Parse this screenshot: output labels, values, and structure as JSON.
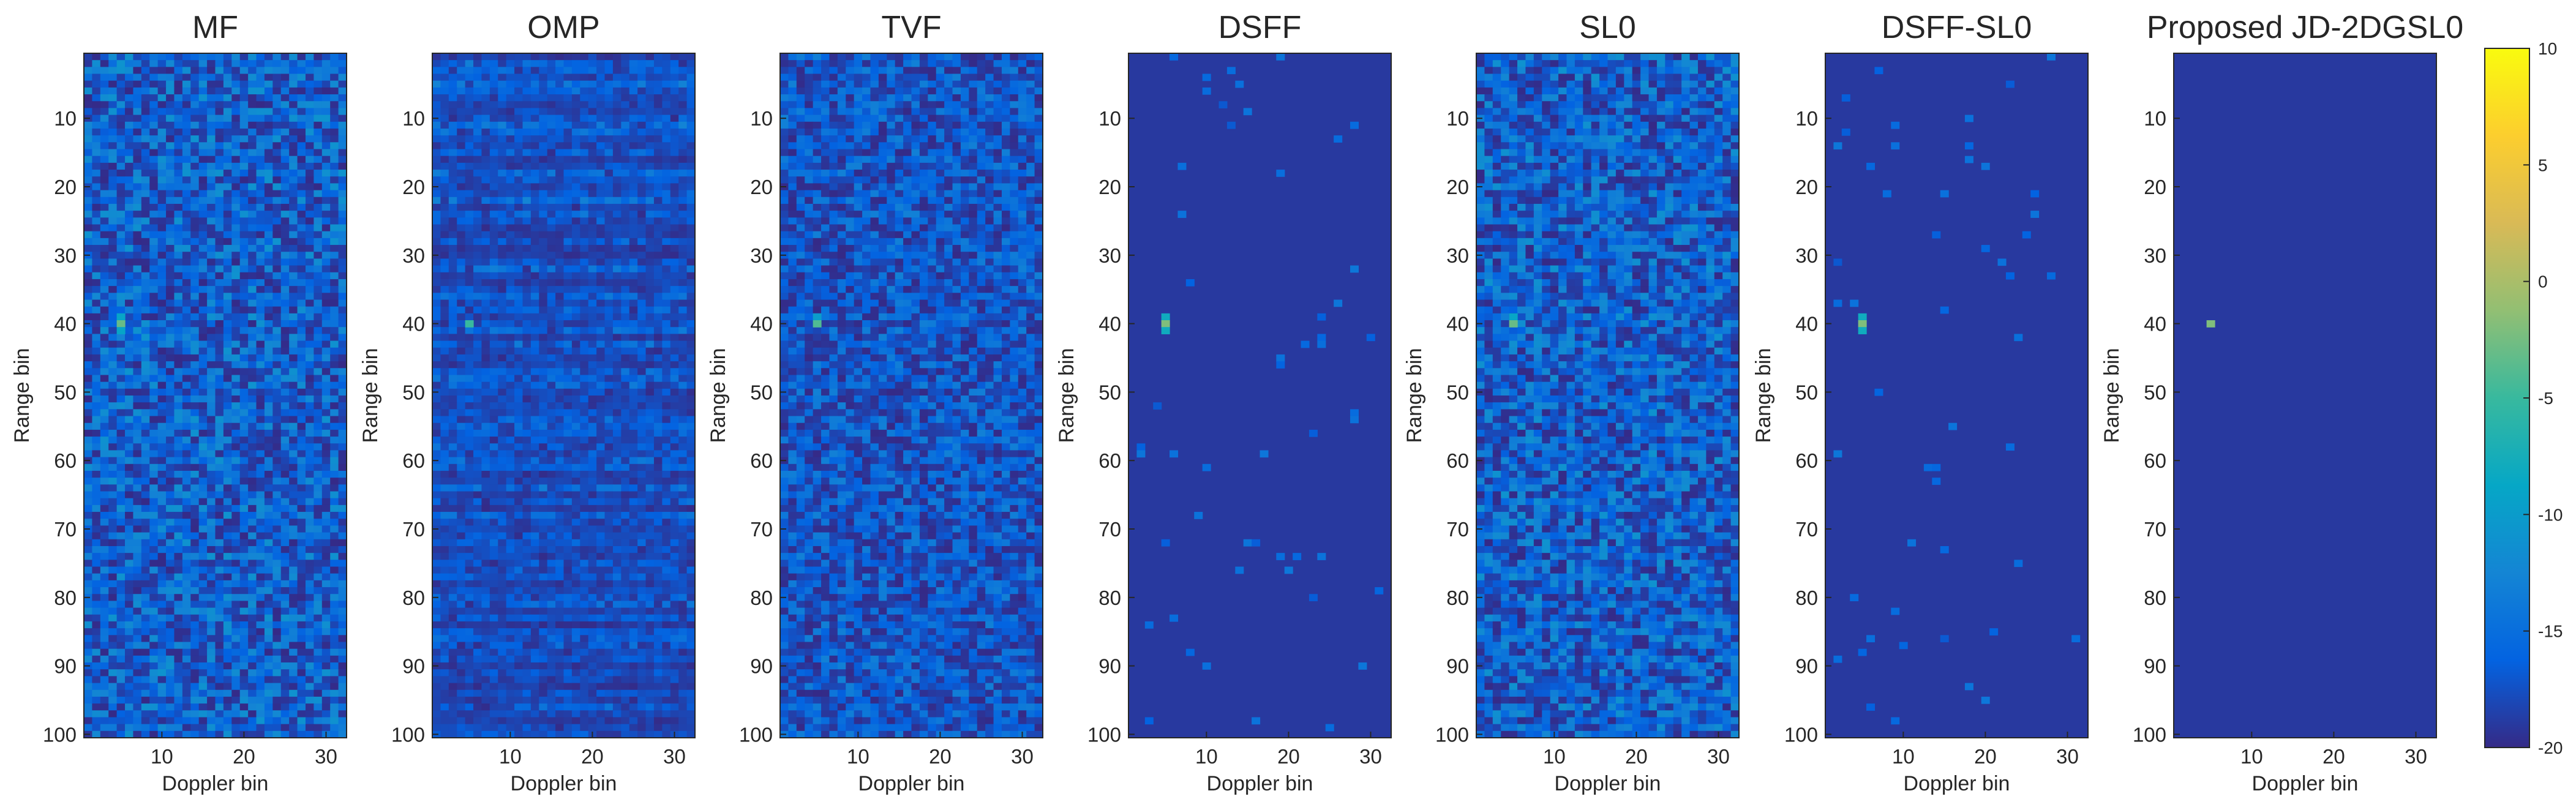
{
  "chart_data": {
    "type": "heatmap",
    "shared": {
      "xlabel": "Doppler bin",
      "ylabel": "Range bin",
      "x_range": [
        1,
        32
      ],
      "y_range": [
        1,
        100
      ],
      "x_ticks": [
        10,
        20,
        30
      ],
      "y_ticks": [
        10,
        20,
        30,
        40,
        50,
        60,
        70,
        80,
        90,
        100
      ],
      "colorbar": {
        "colormap": "parula",
        "clim": [
          -20,
          10
        ],
        "ticks": [
          10,
          5,
          0,
          -5,
          -10,
          -15,
          -20
        ],
        "colors": [
          "#352A87",
          "#0363E1",
          "#1485D4",
          "#06A7C6",
          "#38B99E",
          "#92BF73",
          "#D9BA56",
          "#FCCE2E",
          "#F9FB0E"
        ]
      },
      "target": {
        "doppler_bin": 5,
        "range_bin": 40
      }
    },
    "panels": [
      {
        "title": "MF",
        "background_db": -20,
        "noise_level_db": 9,
        "noise_pattern": "uniform",
        "target_db": -3,
        "target_extent": [
          1,
          3
        ]
      },
      {
        "title": "OMP",
        "background_db": -20,
        "noise_level_db": 8,
        "noise_pattern": "striped-rows",
        "target_db": -5,
        "target_extent": [
          1,
          1
        ]
      },
      {
        "title": "TVF",
        "background_db": -20,
        "noise_level_db": 7,
        "noise_pattern": "uniform",
        "target_db": -4,
        "target_extent": [
          1,
          2
        ]
      },
      {
        "title": "DSFF",
        "background_db": -19,
        "noise_level_db": 2,
        "noise_pattern": "sparse",
        "target_db": -2,
        "target_extent": [
          1,
          3
        ]
      },
      {
        "title": "SL0",
        "background_db": -20,
        "noise_level_db": 9,
        "noise_pattern": "uniform",
        "target_db": -3,
        "target_extent": [
          1,
          2
        ]
      },
      {
        "title": "DSFF-SL0",
        "background_db": -19,
        "noise_level_db": 2,
        "noise_pattern": "sparse",
        "target_db": -2,
        "target_extent": [
          1,
          3
        ]
      },
      {
        "title": "Proposed JD-2DGSL0",
        "background_db": -19,
        "noise_level_db": 0,
        "noise_pattern": "none",
        "target_db": -2,
        "target_extent": [
          1,
          1
        ]
      }
    ]
  }
}
